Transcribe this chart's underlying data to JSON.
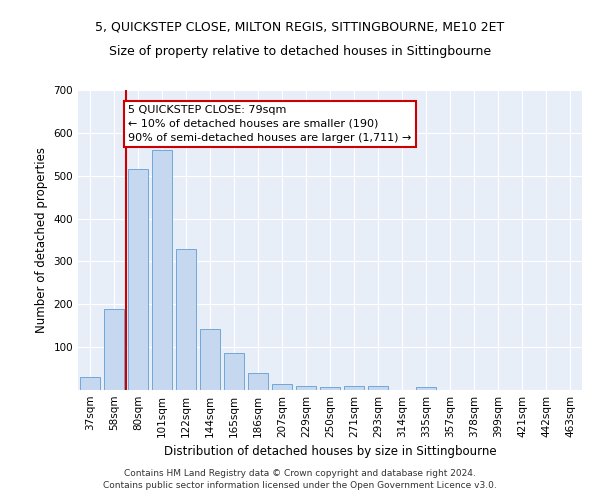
{
  "title": "5, QUICKSTEP CLOSE, MILTON REGIS, SITTINGBOURNE, ME10 2ET",
  "subtitle": "Size of property relative to detached houses in Sittingbourne",
  "xlabel": "Distribution of detached houses by size in Sittingbourne",
  "ylabel": "Number of detached properties",
  "categories": [
    "37sqm",
    "58sqm",
    "80sqm",
    "101sqm",
    "122sqm",
    "144sqm",
    "165sqm",
    "186sqm",
    "207sqm",
    "229sqm",
    "250sqm",
    "271sqm",
    "293sqm",
    "314sqm",
    "335sqm",
    "357sqm",
    "378sqm",
    "399sqm",
    "421sqm",
    "442sqm",
    "463sqm"
  ],
  "values": [
    30,
    190,
    515,
    560,
    328,
    142,
    86,
    40,
    13,
    10,
    8,
    10,
    10,
    0,
    7,
    0,
    0,
    0,
    0,
    0,
    0
  ],
  "bar_color": "#c5d8f0",
  "bar_edge_color": "#6fa8d8",
  "vline_color": "#cc0000",
  "annotation_box_text": "5 QUICKSTEP CLOSE: 79sqm\n← 10% of detached houses are smaller (190)\n90% of semi-detached houses are larger (1,711) →",
  "annotation_box_color": "#cc0000",
  "annotation_box_bg": "#ffffff",
  "ylim": [
    0,
    700
  ],
  "yticks": [
    0,
    100,
    200,
    300,
    400,
    500,
    600,
    700
  ],
  "footer": "Contains HM Land Registry data © Crown copyright and database right 2024.\nContains public sector information licensed under the Open Government Licence v3.0.",
  "bg_color": "#e8eef8",
  "title_fontsize": 9,
  "subtitle_fontsize": 9,
  "xlabel_fontsize": 8.5,
  "ylabel_fontsize": 8.5,
  "tick_fontsize": 7.5,
  "footer_fontsize": 6.5,
  "ann_fontsize": 8
}
